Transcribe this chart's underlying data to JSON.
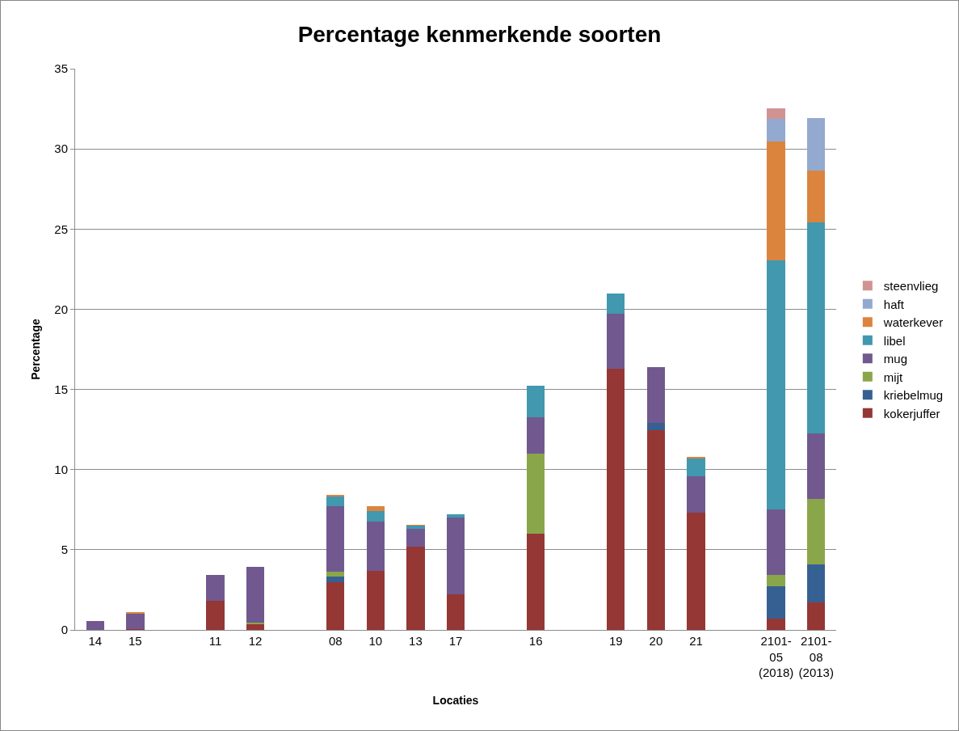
{
  "chart_data": {
    "type": "bar",
    "stacked": true,
    "title": "Percentage kenmerkende soorten",
    "xlabel": "Locaties",
    "ylabel": "Percentage",
    "categories": [
      "14",
      "15",
      null,
      "11",
      "12",
      null,
      "08",
      "10",
      "13",
      "17",
      null,
      "16",
      null,
      "19",
      "20",
      "21",
      null,
      "2101-05 (2018)",
      "2101-08 (2013)"
    ],
    "series": [
      {
        "name": "kokerjuffer",
        "color": "#953735",
        "values": [
          null,
          0.05,
          null,
          1.8,
          0.37,
          null,
          2.96,
          3.69,
          5.2,
          2.22,
          null,
          6.0,
          null,
          16.28,
          12.47,
          7.32,
          null,
          0.71,
          1.7
        ]
      },
      {
        "name": "kriebelmug",
        "color": "#376092",
        "values": [
          null,
          null,
          null,
          null,
          null,
          null,
          0.39,
          null,
          null,
          null,
          null,
          null,
          null,
          null,
          0.46,
          null,
          null,
          2.01,
          2.4
        ]
      },
      {
        "name": "mijt",
        "color": "#8aa64a",
        "values": [
          null,
          null,
          null,
          null,
          0.08,
          null,
          0.29,
          null,
          null,
          null,
          null,
          4.98,
          null,
          null,
          null,
          null,
          null,
          0.69,
          4.09
        ]
      },
      {
        "name": "mug",
        "color": "#71598f",
        "values": [
          0.55,
          0.97,
          null,
          1.62,
          3.49,
          null,
          4.07,
          3.06,
          1.11,
          4.8,
          null,
          2.3,
          null,
          3.42,
          3.46,
          2.28,
          null,
          4.09,
          4.09
        ]
      },
      {
        "name": "libel",
        "color": "#4198af",
        "values": [
          null,
          null,
          null,
          null,
          null,
          null,
          0.64,
          0.67,
          0.21,
          0.18,
          null,
          1.97,
          null,
          1.29,
          null,
          1.12,
          null,
          15.54,
          13.13
        ]
      },
      {
        "name": "waterkever",
        "color": "#db843d",
        "values": [
          null,
          0.05,
          null,
          null,
          null,
          null,
          0.05,
          0.31,
          0.03,
          null,
          null,
          null,
          null,
          null,
          null,
          0.08,
          null,
          7.43,
          3.23
        ]
      },
      {
        "name": "haft",
        "color": "#93a9cf",
        "values": [
          null,
          null,
          null,
          null,
          null,
          null,
          null,
          null,
          null,
          null,
          null,
          null,
          null,
          null,
          null,
          null,
          null,
          1.38,
          3.3
        ]
      },
      {
        "name": "steenvlieg",
        "color": "#d19392",
        "values": [
          null,
          null,
          null,
          null,
          null,
          null,
          null,
          null,
          null,
          null,
          null,
          null,
          null,
          null,
          null,
          null,
          null,
          0.67,
          null
        ]
      }
    ],
    "ylim": [
      0,
      35
    ],
    "yticks": [
      0,
      5,
      10,
      15,
      20,
      25,
      30,
      35
    ],
    "grid": "y",
    "legend": "right"
  }
}
